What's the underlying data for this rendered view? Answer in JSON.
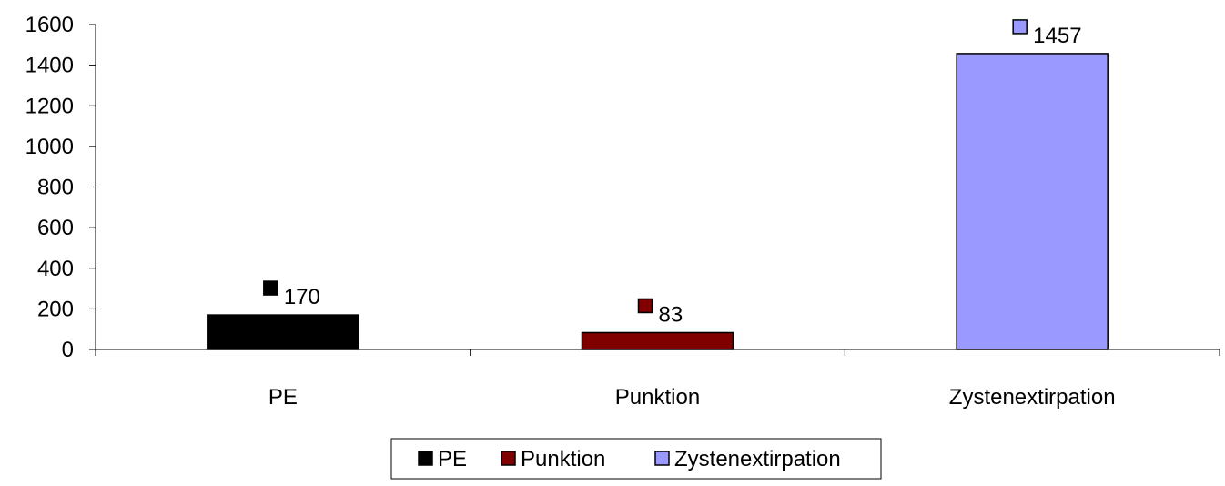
{
  "chart_data": {
    "type": "bar",
    "title": "",
    "xlabel": "",
    "ylabel": "",
    "categories": [
      "PE",
      "Punktion",
      "Zystenextirpation"
    ],
    "values": [
      170,
      83,
      1457
    ],
    "colors": [
      "#000000",
      "#800000",
      "#9999ff"
    ],
    "ylim": [
      0,
      1600
    ],
    "yticks": [
      0,
      200,
      400,
      600,
      800,
      1000,
      1200,
      1400,
      1600
    ],
    "grid": false,
    "legend": {
      "placement": "bottom",
      "entries": [
        "PE",
        "Punktion",
        "Zystenextirpation"
      ]
    },
    "data_labels": [
      "170",
      "83",
      "1457"
    ]
  }
}
